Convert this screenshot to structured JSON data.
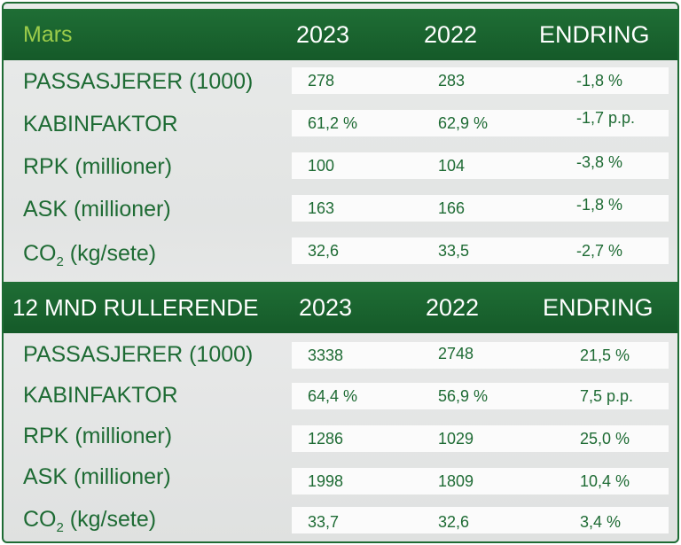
{
  "sections": [
    {
      "title": "Mars",
      "col_2023": "2023",
      "col_2022": "2022",
      "col_change": "ENDRING",
      "rows": [
        {
          "label": "PASSASJERER (1000)",
          "v2023": "278",
          "v2022": "283",
          "change": "-1,8 %"
        },
        {
          "label": "KABINFAKTOR",
          "v2023": "61,2 %",
          "v2022": "62,9 %",
          "change": "-1,7 p.p."
        },
        {
          "label": "RPK (millioner)",
          "v2023": "100",
          "v2022": "104",
          "change": "-3,8 %"
        },
        {
          "label": "ASK (millioner)",
          "v2023": "163",
          "v2022": "166",
          "change": "-1,8 %"
        },
        {
          "label_main": "CO",
          "label_sub": "2",
          "label_rest": " (kg/sete)",
          "v2023": "32,6",
          "v2022": "33,5",
          "change": "-2,7 %"
        }
      ]
    },
    {
      "title": "12 MND RULLERENDE",
      "col_2023": "2023",
      "col_2022": "2022",
      "col_change": "ENDRING",
      "rows": [
        {
          "label": "PASSASJERER (1000)",
          "v2023": "3338",
          "v2022": "2748",
          "change": "21,5 %"
        },
        {
          "label": "KABINFAKTOR",
          "v2023": "64,4 %",
          "v2022": "56,9 %",
          "change": "7,5 p.p."
        },
        {
          "label": "RPK (millioner)",
          "v2023": "1286",
          "v2022": "1029",
          "change": "25,0 %"
        },
        {
          "label": "ASK (millioner)",
          "v2023": "1998",
          "v2022": "1809",
          "change": "10,4 %"
        },
        {
          "label_main": "CO",
          "label_sub": "2",
          "label_rest": " (kg/sete)",
          "v2023": "33,7",
          "v2022": "32,6",
          "change": "3,4 %"
        }
      ]
    }
  ]
}
